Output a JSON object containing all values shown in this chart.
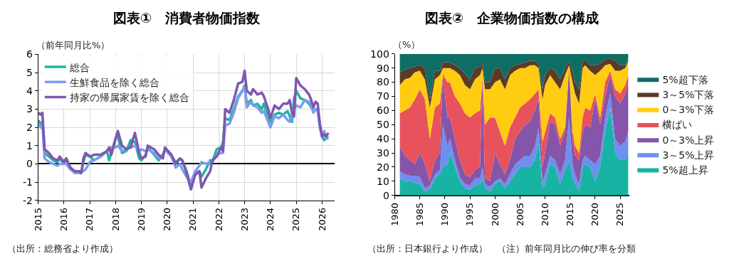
{
  "chart_data": [
    {
      "type": "line",
      "title": "図表①　消費者物価指数",
      "ylabel": "（前年同月比%）",
      "x": [
        "2015-01",
        "2015-02",
        "2015-03",
        "2015-04",
        "2015-06",
        "2015-08",
        "2015-10",
        "2015-11",
        "2016-01",
        "2016-02",
        "2016-04",
        "2016-06",
        "2016-08",
        "2016-09",
        "2016-10",
        "2016-11",
        "2017-01",
        "2017-03",
        "2017-06",
        "2017-09",
        "2017-10",
        "2017-11",
        "2018-01",
        "2018-02",
        "2018-04",
        "2018-06",
        "2018-08",
        "2018-10",
        "2018-12",
        "2019-01",
        "2019-03",
        "2019-04",
        "2019-07",
        "2019-09",
        "2019-11",
        "2019-12",
        "2020-03",
        "2020-05",
        "2020-07",
        "2020-08",
        "2020-10",
        "2020-12",
        "2021-02",
        "2021-04",
        "2021-05",
        "2021-07",
        "2021-09",
        "2021-10",
        "2021-12",
        "2022-02",
        "2022-03",
        "2022-04",
        "2022-06",
        "2022-08",
        "2022-10",
        "2022-12",
        "2023-01",
        "2023-02",
        "2023-04",
        "2023-05",
        "2023-07",
        "2023-09",
        "2023-10",
        "2023-12",
        "2024-01",
        "2024-03",
        "2024-05",
        "2024-07",
        "2024-09",
        "2024-10",
        "2024-11",
        "2024-12",
        "2025-01",
        "2025-03",
        "2025-05",
        "2025-07",
        "2025-08",
        "2025-09",
        "2025-10",
        "2025-11",
        "2025-12",
        "2026-01",
        "2026-02",
        "2026-03",
        "2026-04"
      ],
      "series": [
        {
          "name": "総合",
          "color": "#1fb5a0",
          "values": [
            2.4,
            2.2,
            2.3,
            0.6,
            0.4,
            0.2,
            0.1,
            0.3,
            0.0,
            0.3,
            -0.3,
            -0.4,
            -0.5,
            -0.5,
            0.1,
            0.5,
            0.4,
            0.2,
            0.4,
            0.7,
            0.2,
            0.6,
            1.4,
            1.5,
            0.6,
            0.7,
            1.3,
            1.2,
            0.3,
            0.2,
            0.5,
            0.9,
            0.5,
            0.2,
            0.5,
            0.8,
            0.4,
            0.1,
            0.3,
            0.2,
            -0.4,
            -1.2,
            -0.5,
            -0.4,
            -0.7,
            -0.3,
            0.2,
            0.1,
            0.8,
            0.9,
            1.2,
            2.5,
            2.4,
            3.0,
            3.7,
            4.0,
            4.3,
            3.3,
            3.5,
            3.2,
            3.3,
            3.0,
            3.3,
            2.6,
            2.2,
            2.7,
            2.8,
            2.7,
            2.9,
            2.6,
            2.3,
            3.6,
            4.0,
            3.6,
            3.5,
            3.3,
            3.1,
            2.9,
            3.0,
            2.9,
            2.1,
            1.5,
            1.3,
            1.4,
            1.4
          ]
        },
        {
          "name": "生鮮食品を除く総合",
          "color": "#7b9cf0",
          "values": [
            2.2,
            2.0,
            2.2,
            0.3,
            0.1,
            0.0,
            -0.1,
            0.0,
            0.0,
            0.0,
            -0.3,
            -0.5,
            -0.5,
            -0.4,
            -0.4,
            -0.3,
            0.1,
            0.2,
            0.4,
            0.7,
            0.8,
            0.9,
            0.9,
            1.0,
            0.7,
            0.8,
            0.9,
            1.0,
            0.7,
            0.8,
            0.7,
            0.8,
            0.6,
            0.3,
            0.5,
            0.8,
            0.4,
            -0.2,
            0.0,
            -0.3,
            -0.7,
            -1.0,
            -0.4,
            -0.1,
            0.1,
            0.0,
            0.1,
            0.1,
            0.5,
            0.6,
            0.6,
            2.1,
            2.2,
            2.8,
            3.6,
            4.0,
            4.2,
            3.1,
            3.4,
            3.2,
            3.1,
            2.8,
            2.9,
            2.3,
            2.0,
            2.6,
            2.5,
            2.7,
            2.4,
            2.3,
            2.7,
            3.0,
            3.2,
            3.1,
            3.5,
            3.4,
            3.2,
            2.8,
            3.0,
            3.0,
            2.0,
            1.5,
            1.8,
            1.4,
            1.5
          ]
        },
        {
          "name": "持家の帰属家賃を除く総合",
          "color": "#7f56b0",
          "values": [
            2.8,
            2.7,
            2.8,
            0.8,
            0.6,
            0.3,
            0.2,
            0.4,
            0.1,
            0.3,
            -0.2,
            -0.4,
            -0.4,
            -0.5,
            0.3,
            0.6,
            0.4,
            0.5,
            0.5,
            0.7,
            0.9,
            0.5,
            1.4,
            1.8,
            1.0,
            0.8,
            0.9,
            1.7,
            0.6,
            0.3,
            0.4,
            1.0,
            0.8,
            0.5,
            0.3,
            0.9,
            0.5,
            0.0,
            0.3,
            0.2,
            -0.5,
            -1.4,
            -0.6,
            -0.4,
            -1.3,
            -0.8,
            -0.4,
            0.2,
            0.4,
            0.9,
            0.7,
            3.0,
            2.8,
            3.5,
            4.4,
            4.5,
            5.1,
            4.0,
            3.8,
            4.1,
            3.8,
            3.9,
            3.7,
            3.0,
            2.5,
            3.2,
            3.0,
            3.3,
            3.3,
            3.5,
            2.8,
            2.6,
            4.7,
            4.3,
            4.1,
            3.8,
            3.5,
            3.1,
            3.4,
            3.3,
            2.2,
            1.5,
            1.6,
            1.5,
            1.7
          ]
        }
      ],
      "xlim": [
        "2015-01",
        "2026-07"
      ],
      "xticks": [
        "2015",
        "2016",
        "2017",
        "2018",
        "2019",
        "2020",
        "2021",
        "2022",
        "2023",
        "2024",
        "2025",
        "2026"
      ],
      "ylim": [
        -2,
        6
      ],
      "yticks": [
        -2,
        -1,
        0,
        1,
        2,
        3,
        4,
        5,
        6
      ],
      "grid": true,
      "legend": "top left",
      "line_style": "solid",
      "marker": "none",
      "annotations": [
        "（出所：総務省より作成）"
      ]
    },
    {
      "type": "area",
      "stacked": true,
      "title": "図表②　企業物価指数の構成",
      "ylabel": "（%）",
      "x": [
        1981,
        1982,
        1983,
        1984,
        1985,
        1986,
        1987,
        1988,
        1989,
        1989.6,
        1990.5,
        1991,
        1992,
        1993,
        1994,
        1995,
        1996,
        1997,
        1997.5,
        1998,
        1999,
        2000,
        2001,
        2002,
        2003,
        2004,
        2005,
        2006,
        2007,
        2008,
        2008.7,
        2009.5,
        2010,
        2011,
        2012,
        2013,
        2014,
        2014.8,
        2015.5,
        2016,
        2016.8,
        2017.5,
        2018,
        2019,
        2020,
        2021,
        2022,
        2023,
        2024,
        2025,
        2026,
        2026.6
      ],
      "series": [
        {
          "name": "5%超上昇",
          "color": "#17b3a3",
          "values": [
            12,
            10,
            10,
            9,
            8,
            3,
            4,
            12,
            15,
            20,
            22,
            30,
            20,
            10,
            5,
            4,
            7,
            8,
            12,
            5,
            3,
            8,
            10,
            5,
            10,
            15,
            20,
            20,
            20,
            25,
            38,
            5,
            8,
            22,
            20,
            8,
            18,
            25,
            12,
            8,
            3,
            20,
            22,
            20,
            10,
            20,
            45,
            62,
            30,
            25,
            25,
            30
          ]
        },
        {
          "name": "3～5%上昇",
          "color": "#6f8ff0",
          "values": [
            5,
            5,
            4,
            5,
            5,
            2,
            3,
            3,
            3,
            30,
            13,
            10,
            5,
            3,
            3,
            3,
            5,
            4,
            8,
            3,
            3,
            2,
            2,
            3,
            5,
            7,
            5,
            8,
            8,
            10,
            10,
            5,
            7,
            6,
            5,
            7,
            7,
            30,
            10,
            7,
            5,
            5,
            6,
            5,
            12,
            8,
            10,
            10,
            10,
            10,
            13,
            15
          ]
        },
        {
          "name": "0～3%上昇",
          "color": "#8455a8",
          "values": [
            18,
            13,
            11,
            8,
            17,
            17,
            3,
            10,
            12,
            35,
            20,
            15,
            15,
            12,
            7,
            6,
            6,
            8,
            62,
            4,
            4,
            20,
            10,
            7,
            10,
            18,
            20,
            22,
            24,
            25,
            20,
            10,
            15,
            24,
            25,
            20,
            20,
            35,
            16,
            13,
            17,
            20,
            22,
            23,
            46,
            22,
            15,
            13,
            30,
            30,
            34,
            35
          ]
        },
        {
          "name": "横ばい",
          "color": "#e8525c",
          "values": [
            23,
            32,
            37,
            46,
            45,
            46,
            30,
            37,
            35,
            1,
            25,
            25,
            30,
            40,
            43,
            42,
            40,
            40,
            1,
            38,
            45,
            25,
            23,
            20,
            23,
            15,
            17,
            15,
            16,
            12,
            7,
            18,
            15,
            6,
            5,
            5,
            3,
            0,
            7,
            7,
            5,
            10,
            12,
            12,
            4,
            5,
            10,
            3,
            5,
            7,
            6,
            5
          ]
        },
        {
          "name": "0～3%下落",
          "color": "#ffcc11",
          "values": [
            20,
            22,
            21,
            19,
            13,
            14,
            22,
            20,
            20,
            4,
            10,
            10,
            18,
            20,
            20,
            20,
            24,
            25,
            7,
            25,
            20,
            25,
            37,
            40,
            37,
            33,
            28,
            25,
            24,
            20,
            15,
            30,
            33,
            27,
            25,
            35,
            37,
            2,
            35,
            37,
            35,
            35,
            30,
            28,
            13,
            33,
            12,
            5,
            13,
            16,
            12,
            10
          ]
        },
        {
          "name": "3～5%下落",
          "color": "#5c3a28",
          "values": [
            9,
            7,
            7,
            4,
            4,
            8,
            6,
            6,
            3,
            4,
            4,
            4,
            4,
            5,
            8,
            7,
            8,
            6,
            4,
            5,
            5,
            10,
            8,
            7,
            5,
            4,
            3,
            4,
            3,
            3,
            3,
            7,
            7,
            5,
            8,
            7,
            5,
            3,
            8,
            8,
            10,
            5,
            4,
            4,
            7,
            5,
            4,
            4,
            7,
            4,
            2,
            2
          ]
        },
        {
          "name": "5%超下落",
          "color": "#0e6e63",
          "values": [
            13,
            11,
            10,
            9,
            8,
            10,
            32,
            12,
            12,
            6,
            6,
            6,
            8,
            10,
            14,
            18,
            10,
            9,
            6,
            20,
            20,
            10,
            10,
            18,
            10,
            8,
            7,
            6,
            5,
            5,
            7,
            25,
            15,
            10,
            12,
            18,
            10,
            5,
            12,
            20,
            25,
            5,
            4,
            8,
            8,
            7,
            4,
            3,
            5,
            8,
            8,
            3
          ]
        }
      ],
      "xlim": [
        1980,
        2026.8
      ],
      "xticks": [
        1980,
        1985,
        1990,
        1995,
        2000,
        2005,
        2010,
        2015,
        2020,
        2025
      ],
      "ylim": [
        0,
        100
      ],
      "yticks": [
        0,
        10,
        20,
        30,
        40,
        50,
        60,
        70,
        80,
        90,
        100
      ],
      "legend": "right",
      "annotations": [
        "（出所：日本銀行より作成）　（注）前年同月比の伸び率を分類"
      ]
    }
  ]
}
